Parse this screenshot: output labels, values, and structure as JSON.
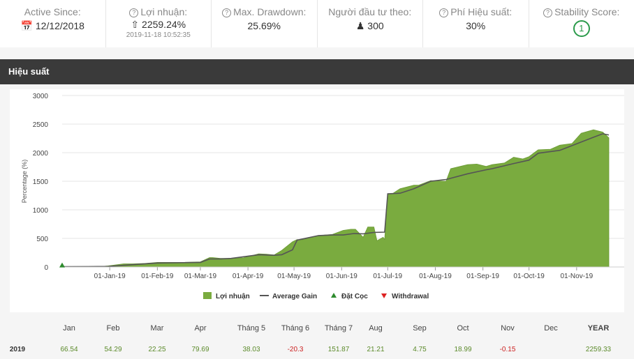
{
  "stats": [
    {
      "label": "Active Since:",
      "value": "12/12/2018",
      "sub": ""
    },
    {
      "label": "Lợi nhuận:",
      "value": "2259.24%",
      "sub": "2019-11-18 10:52:35"
    },
    {
      "label": "Max. Drawdown:",
      "value": "25.69%",
      "sub": ""
    },
    {
      "label": "Người đầu tư theo:",
      "value": "300",
      "sub": ""
    },
    {
      "label": "Phí Hiệu suất:",
      "value": "30%",
      "sub": ""
    },
    {
      "label": "Stability Score:",
      "value": "1",
      "sub": ""
    }
  ],
  "section_title": "Hiệu suất",
  "colors": {
    "profit_fill": "#7aab3f",
    "avg_line": "#555555",
    "deposit": "#2e8b2e",
    "withdrawal": "#dd2222",
    "header_bg": "#3a3a3a"
  },
  "chart_data": {
    "type": "area",
    "ylabel": "Percentage (%)",
    "ylim": [
      0,
      3000
    ],
    "y_ticks": [
      "0",
      "500",
      "1000",
      "1500",
      "2000",
      "2500",
      "3000"
    ],
    "x_ticks": [
      "01-Jan-19",
      "01-Feb-19",
      "01-Mar-19",
      "01-Apr-19",
      "01-May-19",
      "01-Jun-19",
      "01-Jul-19",
      "01-Aug-19",
      "01-Sep-19",
      "01-Oct-19",
      "01-Nov-19"
    ],
    "x_tick_days": [
      31,
      62,
      90,
      121,
      151,
      182,
      212,
      243,
      274,
      304,
      335
    ],
    "xlim_days": [
      0,
      366
    ],
    "legend": [
      "Lợi nhuận",
      "Average Gain",
      "Đặt Cọc",
      "Withdrawal"
    ],
    "series": [
      {
        "name": "Lợi nhuận",
        "type": "area",
        "x": [
          0,
          8,
          16,
          24,
          30,
          40,
          46,
          54,
          62,
          70,
          80,
          90,
          96,
          98,
          103,
          110,
          118,
          128,
          133,
          138,
          143,
          150,
          153,
          156,
          162,
          167,
          171,
          176,
          183,
          188,
          191,
          196,
          199,
          203,
          205,
          209,
          210,
          212,
          215,
          220,
          229,
          232,
          240,
          250,
          253,
          264,
          270,
          276,
          280,
          288,
          294,
          300,
          304,
          310,
          318,
          324,
          332,
          338,
          346,
          352,
          356
        ],
        "y": [
          5,
          5,
          5,
          5,
          20,
          55,
          55,
          62,
          80,
          80,
          82,
          90,
          165,
          165,
          150,
          150,
          160,
          230,
          225,
          210,
          290,
          440,
          480,
          475,
          520,
          545,
          560,
          570,
          640,
          660,
          660,
          520,
          700,
          700,
          460,
          520,
          480,
          1280,
          1280,
          1370,
          1430,
          1430,
          1510,
          1500,
          1720,
          1790,
          1800,
          1760,
          1790,
          1820,
          1920,
          1890,
          1930,
          2050,
          2060,
          2130,
          2160,
          2340,
          2400,
          2360,
          2260
        ]
      },
      {
        "name": "Average Gain",
        "type": "line",
        "x": [
          0,
          30,
          46,
          62,
          90,
          96,
          103,
          110,
          128,
          138,
          143,
          150,
          153,
          160,
          167,
          176,
          183,
          190,
          196,
          203,
          210,
          212,
          220,
          229,
          240,
          250,
          264,
          276,
          280,
          294,
          304,
          310,
          324,
          346,
          352,
          356
        ],
        "y": [
          5,
          10,
          40,
          70,
          80,
          140,
          140,
          150,
          215,
          205,
          215,
          300,
          470,
          510,
          550,
          560,
          560,
          585,
          580,
          605,
          610,
          1280,
          1290,
          1370,
          1500,
          1530,
          1630,
          1700,
          1720,
          1810,
          1870,
          1990,
          2040,
          2270,
          2330,
          2310
        ]
      }
    ],
    "markers": [
      {
        "name": "Đặt Cọc",
        "x_day": 0,
        "y": 5
      }
    ]
  },
  "monthly": {
    "headers": [
      "Jan",
      "Feb",
      "Mar",
      "Apr",
      "Tháng 5",
      "Tháng 6",
      "Tháng 7",
      "Aug",
      "Sep",
      "Oct",
      "Nov",
      "Dec",
      "YEAR"
    ],
    "year": "2019",
    "values": [
      "66.54",
      "54.29",
      "22.25",
      "79.69",
      "38.03",
      "-20.3",
      "151.87",
      "21.21",
      "4.75",
      "18.99",
      "-0.15",
      "",
      "2259.33"
    ]
  }
}
